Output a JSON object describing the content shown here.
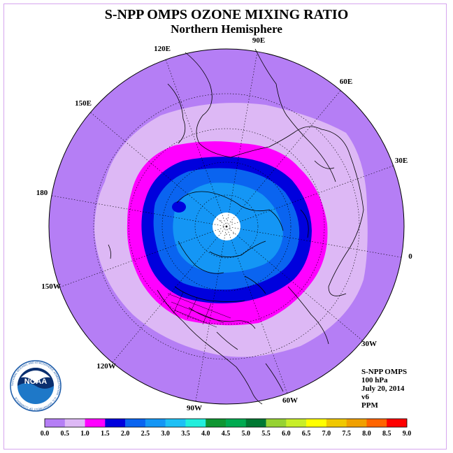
{
  "title": "S-NPP OMPS OZONE MIXING RATIO",
  "subtitle": "Northern Hemisphere",
  "longitude_labels": [
    "90E",
    "60E",
    "30E",
    "0",
    "30W",
    "60W",
    "90W",
    "120W",
    "150W",
    "180",
    "150E",
    "120E"
  ],
  "info": {
    "instrument": "S-NPP OMPS",
    "level": "100 hPa",
    "date": "July 20, 2014",
    "version": "v6",
    "units": "PPM"
  },
  "logo": {
    "text": "NOAA",
    "ring_text": "NATIONAL OCEANIC AND ATMOSPHERIC ADMINISTRATION · U.S. DEPARTMENT OF COMMERCE"
  },
  "colorbar": {
    "ticks": [
      "0.0",
      "0.5",
      "1.0",
      "1.5",
      "2.0",
      "2.5",
      "3.0",
      "3.5",
      "4.0",
      "4.5",
      "5.0",
      "5.5",
      "6.0",
      "6.5",
      "7.0",
      "7.5",
      "8.0",
      "8.5",
      "9.0"
    ],
    "colors": [
      "#b57ef5",
      "#ddb8f5",
      "#ff00ff",
      "#0000dd",
      "#0a64f0",
      "#1496f5",
      "#1ec0f5",
      "#22eedc",
      "#0f9632",
      "#00aa50",
      "#007832",
      "#96d232",
      "#c8ee28",
      "#ffff00",
      "#f0c800",
      "#f0a000",
      "#ff6400",
      "#ff0000",
      "#8c5a3c"
    ]
  },
  "map_colors": {
    "0.0-0.5": "#b57ef5",
    "0.5-1.0": "#ddb8f5",
    "1.0-1.5": "#ff00ff",
    "1.5-2.0": "#0000dd",
    "2.0-2.5": "#0a64f0",
    "2.5-3.0": "#1496f5",
    "no_data": "#ffffff"
  }
}
